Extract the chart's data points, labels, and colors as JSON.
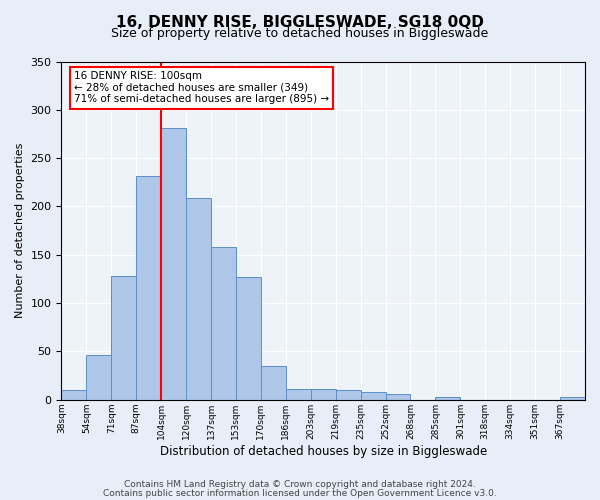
{
  "title1": "16, DENNY RISE, BIGGLESWADE, SG18 0QD",
  "title2": "Size of property relative to detached houses in Biggleswade",
  "xlabel": "Distribution of detached houses by size in Biggleswade",
  "ylabel": "Number of detached properties",
  "bin_labels": [
    "38sqm",
    "54sqm",
    "71sqm",
    "87sqm",
    "104sqm",
    "120sqm",
    "137sqm",
    "153sqm",
    "170sqm",
    "186sqm",
    "203sqm",
    "219sqm",
    "235sqm",
    "252sqm",
    "268sqm",
    "285sqm",
    "301sqm",
    "318sqm",
    "334sqm",
    "351sqm",
    "367sqm"
  ],
  "bar_heights": [
    10,
    46,
    128,
    232,
    281,
    209,
    158,
    127,
    35,
    11,
    11,
    10,
    8,
    6,
    0,
    3,
    0,
    0,
    0,
    0,
    3
  ],
  "bar_color": "#aec6e8",
  "bar_edge_color": "#5b8fc9",
  "vline_x": 4,
  "vline_color": "red",
  "annotation_text": "16 DENNY RISE: 100sqm\n← 28% of detached houses are smaller (349)\n71% of semi-detached houses are larger (895) →",
  "annotation_box_color": "white",
  "annotation_box_edge_color": "red",
  "ylim": [
    0,
    350
  ],
  "yticks": [
    0,
    50,
    100,
    150,
    200,
    250,
    300,
    350
  ],
  "footer1": "Contains HM Land Registry data © Crown copyright and database right 2024.",
  "footer2": "Contains public sector information licensed under the Open Government Licence v3.0.",
  "bg_color": "#e8eef7",
  "plot_bg_color": "#eef2f9",
  "title1_fontsize": 11,
  "title2_fontsize": 9,
  "annotation_fontsize": 7.5,
  "footer_fontsize": 6.5,
  "ylabel_fontsize": 8,
  "xlabel_fontsize": 8.5,
  "ytick_fontsize": 8,
  "xtick_fontsize": 6.5
}
